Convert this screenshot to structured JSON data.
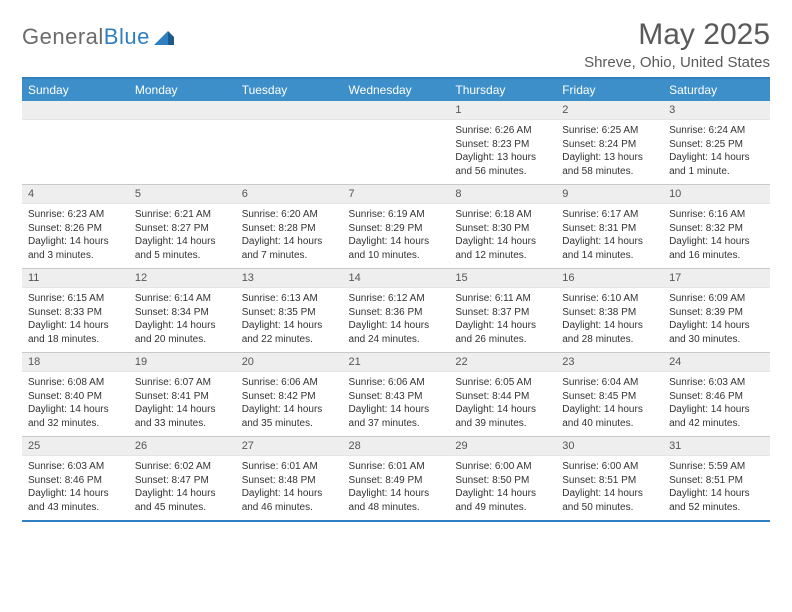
{
  "logo": {
    "general": "General",
    "blue": "Blue"
  },
  "title": "May 2025",
  "location": "Shreve, Ohio, United States",
  "colors": {
    "brand_blue": "#3d8fc9",
    "rule_blue": "#2f7fc1",
    "header_text": "#ffffff",
    "daynum_bg": "#eeeeee",
    "body_text": "#333333",
    "muted_text": "#5a5a5a"
  },
  "weekdays": [
    "Sunday",
    "Monday",
    "Tuesday",
    "Wednesday",
    "Thursday",
    "Friday",
    "Saturday"
  ],
  "weeks": [
    [
      null,
      null,
      null,
      null,
      {
        "n": "1",
        "sr": "6:26 AM",
        "ss": "8:23 PM",
        "dl": "13 hours and 56 minutes."
      },
      {
        "n": "2",
        "sr": "6:25 AM",
        "ss": "8:24 PM",
        "dl": "13 hours and 58 minutes."
      },
      {
        "n": "3",
        "sr": "6:24 AM",
        "ss": "8:25 PM",
        "dl": "14 hours and 1 minute."
      }
    ],
    [
      {
        "n": "4",
        "sr": "6:23 AM",
        "ss": "8:26 PM",
        "dl": "14 hours and 3 minutes."
      },
      {
        "n": "5",
        "sr": "6:21 AM",
        "ss": "8:27 PM",
        "dl": "14 hours and 5 minutes."
      },
      {
        "n": "6",
        "sr": "6:20 AM",
        "ss": "8:28 PM",
        "dl": "14 hours and 7 minutes."
      },
      {
        "n": "7",
        "sr": "6:19 AM",
        "ss": "8:29 PM",
        "dl": "14 hours and 10 minutes."
      },
      {
        "n": "8",
        "sr": "6:18 AM",
        "ss": "8:30 PM",
        "dl": "14 hours and 12 minutes."
      },
      {
        "n": "9",
        "sr": "6:17 AM",
        "ss": "8:31 PM",
        "dl": "14 hours and 14 minutes."
      },
      {
        "n": "10",
        "sr": "6:16 AM",
        "ss": "8:32 PM",
        "dl": "14 hours and 16 minutes."
      }
    ],
    [
      {
        "n": "11",
        "sr": "6:15 AM",
        "ss": "8:33 PM",
        "dl": "14 hours and 18 minutes."
      },
      {
        "n": "12",
        "sr": "6:14 AM",
        "ss": "8:34 PM",
        "dl": "14 hours and 20 minutes."
      },
      {
        "n": "13",
        "sr": "6:13 AM",
        "ss": "8:35 PM",
        "dl": "14 hours and 22 minutes."
      },
      {
        "n": "14",
        "sr": "6:12 AM",
        "ss": "8:36 PM",
        "dl": "14 hours and 24 minutes."
      },
      {
        "n": "15",
        "sr": "6:11 AM",
        "ss": "8:37 PM",
        "dl": "14 hours and 26 minutes."
      },
      {
        "n": "16",
        "sr": "6:10 AM",
        "ss": "8:38 PM",
        "dl": "14 hours and 28 minutes."
      },
      {
        "n": "17",
        "sr": "6:09 AM",
        "ss": "8:39 PM",
        "dl": "14 hours and 30 minutes."
      }
    ],
    [
      {
        "n": "18",
        "sr": "6:08 AM",
        "ss": "8:40 PM",
        "dl": "14 hours and 32 minutes."
      },
      {
        "n": "19",
        "sr": "6:07 AM",
        "ss": "8:41 PM",
        "dl": "14 hours and 33 minutes."
      },
      {
        "n": "20",
        "sr": "6:06 AM",
        "ss": "8:42 PM",
        "dl": "14 hours and 35 minutes."
      },
      {
        "n": "21",
        "sr": "6:06 AM",
        "ss": "8:43 PM",
        "dl": "14 hours and 37 minutes."
      },
      {
        "n": "22",
        "sr": "6:05 AM",
        "ss": "8:44 PM",
        "dl": "14 hours and 39 minutes."
      },
      {
        "n": "23",
        "sr": "6:04 AM",
        "ss": "8:45 PM",
        "dl": "14 hours and 40 minutes."
      },
      {
        "n": "24",
        "sr": "6:03 AM",
        "ss": "8:46 PM",
        "dl": "14 hours and 42 minutes."
      }
    ],
    [
      {
        "n": "25",
        "sr": "6:03 AM",
        "ss": "8:46 PM",
        "dl": "14 hours and 43 minutes."
      },
      {
        "n": "26",
        "sr": "6:02 AM",
        "ss": "8:47 PM",
        "dl": "14 hours and 45 minutes."
      },
      {
        "n": "27",
        "sr": "6:01 AM",
        "ss": "8:48 PM",
        "dl": "14 hours and 46 minutes."
      },
      {
        "n": "28",
        "sr": "6:01 AM",
        "ss": "8:49 PM",
        "dl": "14 hours and 48 minutes."
      },
      {
        "n": "29",
        "sr": "6:00 AM",
        "ss": "8:50 PM",
        "dl": "14 hours and 49 minutes."
      },
      {
        "n": "30",
        "sr": "6:00 AM",
        "ss": "8:51 PM",
        "dl": "14 hours and 50 minutes."
      },
      {
        "n": "31",
        "sr": "5:59 AM",
        "ss": "8:51 PM",
        "dl": "14 hours and 52 minutes."
      }
    ]
  ],
  "labels": {
    "sunrise": "Sunrise: ",
    "sunset": "Sunset: ",
    "daylight": "Daylight: "
  }
}
